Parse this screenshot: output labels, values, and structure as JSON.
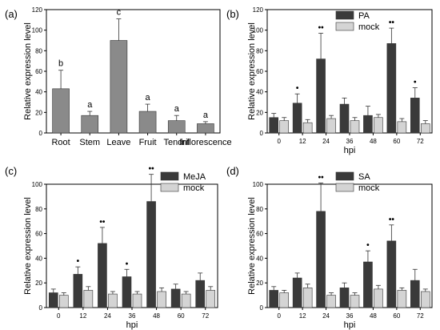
{
  "colors": {
    "dark": "#3a3a3a",
    "light": "#d4d4d4",
    "gray": "#8a8a8a"
  },
  "chart_data": [
    {
      "type": "bar",
      "panel_label": "(a)",
      "ylabel": "Relative expression level",
      "xlabel": "",
      "ylim": [
        0,
        120
      ],
      "yticks": [
        0,
        20,
        40,
        60,
        80,
        100,
        120
      ],
      "categories": [
        "Root",
        "Stem",
        "Leave",
        "Fruit",
        "Tendril",
        "Inflorescence"
      ],
      "series": [
        {
          "values": [
            43,
            17,
            90,
            21,
            12,
            9
          ],
          "errors": [
            18,
            4,
            21,
            7,
            5,
            2
          ]
        }
      ],
      "annotations": [
        "b",
        "a",
        "c",
        "a",
        "a",
        "a"
      ]
    },
    {
      "type": "bar",
      "panel_label": "(b)",
      "ylabel": "Relative expression level",
      "xlabel": "hpi",
      "ylim": [
        0,
        120
      ],
      "yticks": [
        0,
        20,
        40,
        60,
        80,
        100,
        120
      ],
      "categories": [
        "0",
        "12",
        "24",
        "36",
        "48",
        "60",
        "72"
      ],
      "legend_position": "top-right",
      "series": [
        {
          "name": "PA",
          "values": [
            15,
            29,
            72,
            28,
            17,
            87,
            34
          ],
          "errors": [
            4,
            9,
            25,
            6,
            9,
            15,
            10
          ]
        },
        {
          "name": "mock",
          "values": [
            12,
            10,
            14,
            12,
            15,
            11,
            9
          ],
          "errors": [
            3,
            3,
            3,
            3,
            3,
            3,
            3
          ]
        }
      ],
      "significance": [
        "",
        "•",
        "••",
        "",
        "",
        "••",
        "•"
      ]
    },
    {
      "type": "bar",
      "panel_label": "(c)",
      "ylabel": "Relative expression level",
      "xlabel": "hpi",
      "ylim": [
        0,
        100
      ],
      "yticks": [
        0,
        20,
        40,
        60,
        80,
        100
      ],
      "categories": [
        "0",
        "12",
        "24",
        "36",
        "48",
        "60",
        "72"
      ],
      "legend_position": "top-left",
      "series": [
        {
          "name": "MeJA",
          "values": [
            12,
            27,
            52,
            25,
            86,
            15,
            22
          ],
          "errors": [
            3,
            6,
            13,
            6,
            22,
            4,
            6
          ]
        },
        {
          "name": "mock",
          "values": [
            10,
            14,
            11,
            11,
            13,
            11,
            14
          ],
          "errors": [
            2,
            3,
            2,
            2,
            3,
            2,
            3
          ]
        }
      ],
      "significance": [
        "",
        "•",
        "••",
        "•",
        "••",
        "",
        ""
      ]
    },
    {
      "type": "bar",
      "panel_label": "(d)",
      "ylabel": "Relative expression level",
      "xlabel": "hpi",
      "ylim": [
        0,
        100
      ],
      "yticks": [
        0,
        20,
        40,
        60,
        80,
        100
      ],
      "categories": [
        "0",
        "12",
        "24",
        "36",
        "48",
        "60",
        "72"
      ],
      "legend_position": "top-right",
      "series": [
        {
          "name": "SA",
          "values": [
            14,
            24,
            78,
            16,
            37,
            54,
            22
          ],
          "errors": [
            3,
            4,
            23,
            4,
            9,
            13,
            9
          ]
        },
        {
          "name": "mock",
          "values": [
            12,
            16,
            10,
            10,
            15,
            14,
            13
          ],
          "errors": [
            2,
            3,
            2,
            2,
            3,
            2,
            2
          ]
        }
      ],
      "significance": [
        "",
        "",
        "••",
        "",
        "•",
        "••",
        ""
      ]
    }
  ]
}
